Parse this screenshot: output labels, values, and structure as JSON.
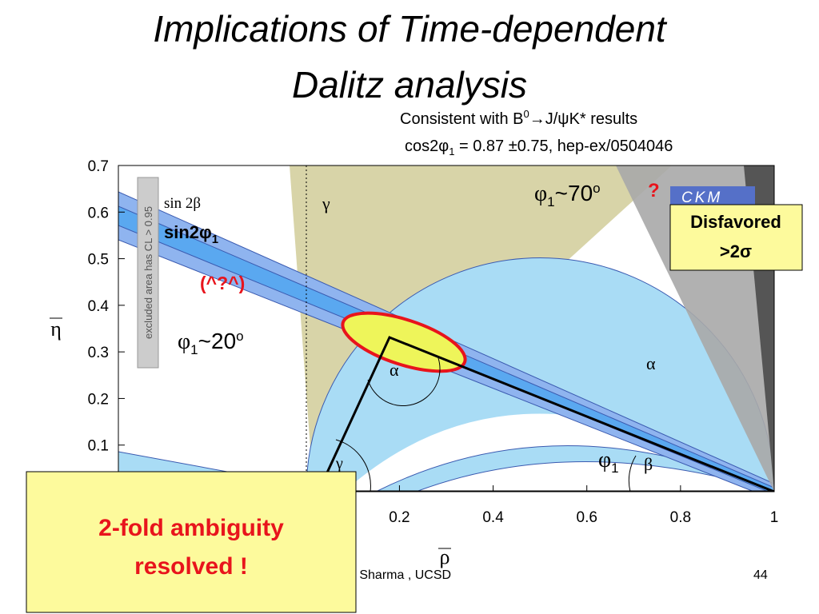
{
  "title": [
    "Implications of Time-dependent",
    "Dalitz analysis"
  ],
  "consistent": {
    "pre": "Consistent with B",
    "sup": "0",
    "post": "→J/ψK* results"
  },
  "cos": {
    "pre": "cos2φ",
    "sub": "1",
    "post": " = 0.87 ±0.75, hep-ex/0504046"
  },
  "excluded_note": "excluded area has CL > 0.95",
  "sin2beta": "sin 2β",
  "sin2phi1": {
    "main": "sin2φ",
    "sub": "1"
  },
  "face": "(^?^)",
  "phi20": {
    "phi": "φ",
    "sub": "1",
    "mid": "~20",
    "sup": "o"
  },
  "phi70": {
    "phi": "φ",
    "sub": "1",
    "mid": "~70",
    "sup": "o"
  },
  "question": "?",
  "ckm": "CKM",
  "disfavored": {
    "line1": "Disfavored",
    "line2": ">2σ"
  },
  "angles": {
    "gamma_top": "γ",
    "alpha_triangle": "α",
    "alpha_right": "α",
    "gamma_bottom": "γ",
    "phi1": {
      "phi": "φ",
      "sub": "1"
    },
    "beta": "β"
  },
  "ambiguity": [
    "2-fold ambiguity",
    "resolved !"
  ],
  "footer": {
    "author": "ek Sharma , UCSD",
    "page": "44"
  },
  "chart_data": {
    "type": "region",
    "xlabel": "ρ",
    "ylabel": "η",
    "xlim": [
      -0.4,
      1
    ],
    "ylim": [
      0,
      0.7
    ],
    "xticks": [
      0.2,
      0.4,
      0.6,
      0.8,
      1
    ],
    "yticks": [
      0.1,
      0.2,
      0.3,
      0.4,
      0.5,
      0.6,
      0.7
    ]
  }
}
